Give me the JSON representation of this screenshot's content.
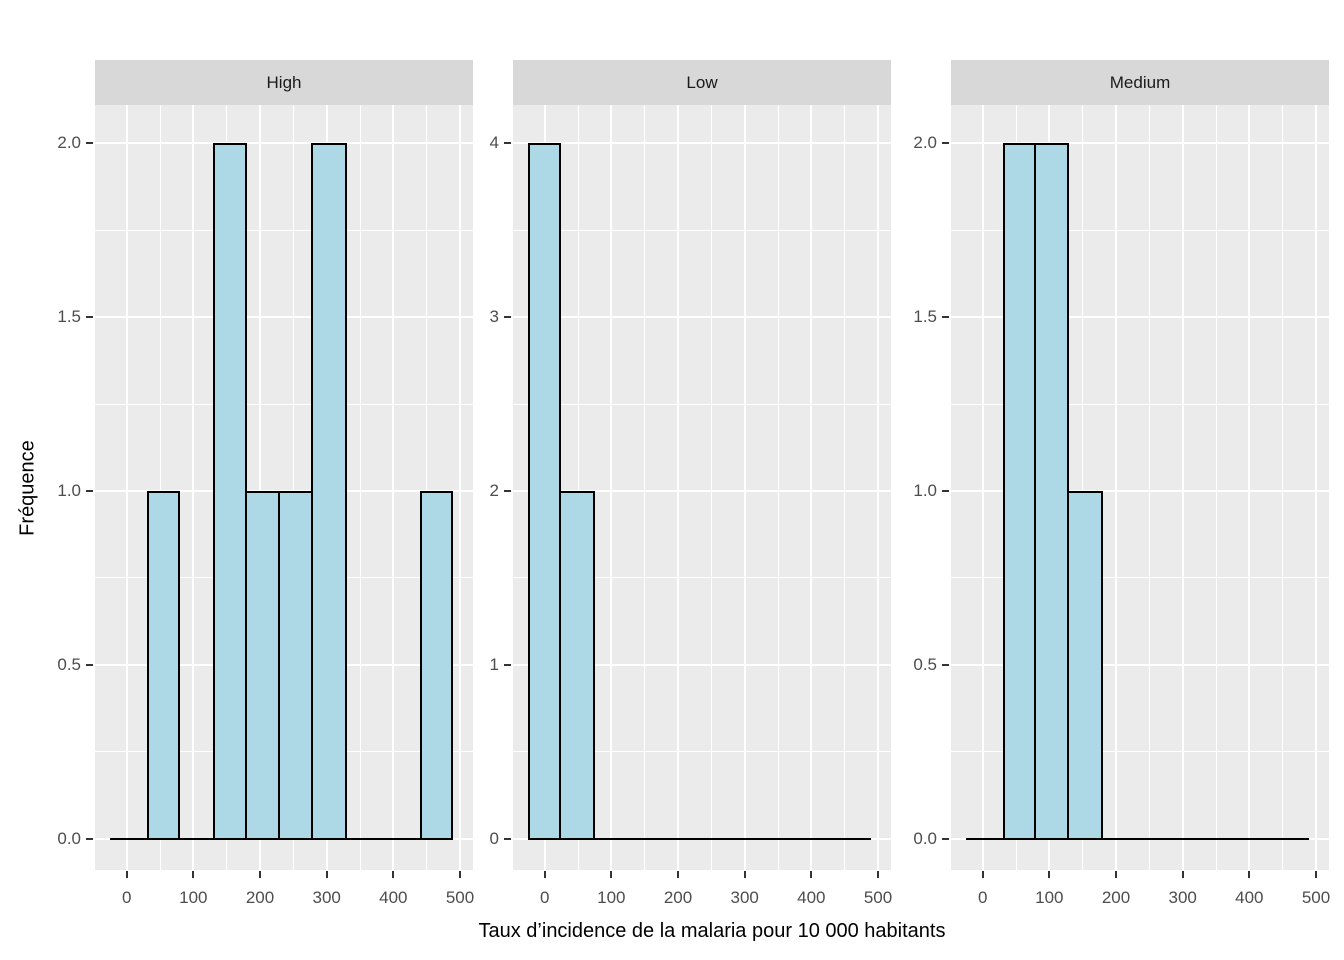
{
  "chart_data": {
    "type": "bar",
    "subtype": "faceted-histogram",
    "title": "",
    "xlabel": "Taux d’incidence de la malaria pour 10 000 habitants",
    "ylabel": "Fréquence",
    "legend": "none",
    "grid": "on",
    "x_domain": [
      -47.5,
      519.5
    ],
    "x_major_ticks": [
      {
        "value": 0,
        "label": "0"
      },
      {
        "value": 100,
        "label": "100"
      },
      {
        "value": 200,
        "label": "200"
      },
      {
        "value": 300,
        "label": "300"
      },
      {
        "value": 400,
        "label": "400"
      },
      {
        "value": 500,
        "label": "500"
      }
    ],
    "x_minor_ticks": [
      50,
      150,
      250,
      350,
      450
    ],
    "zero_line_range": [
      -25,
      490
    ],
    "facets": [
      {
        "label": "High",
        "y_domain": [
          -0.09,
          2.11
        ],
        "y_major_ticks": [
          {
            "value": 0,
            "label": "0.0"
          },
          {
            "value": 0.5,
            "label": "0.5"
          },
          {
            "value": 1,
            "label": "1.0"
          },
          {
            "value": 1.5,
            "label": "1.5"
          },
          {
            "value": 2,
            "label": "2.0"
          }
        ],
        "y_minor_ticks": [
          0.25,
          0.75,
          1.25,
          1.75
        ],
        "bins": [
          {
            "start": 30,
            "end": 80,
            "count": 1
          },
          {
            "start": 130,
            "end": 180,
            "count": 2
          },
          {
            "start": 180,
            "end": 230,
            "count": 1
          },
          {
            "start": 230,
            "end": 280,
            "count": 1
          },
          {
            "start": 280,
            "end": 330,
            "count": 2
          },
          {
            "start": 440,
            "end": 490,
            "count": 1
          }
        ]
      },
      {
        "label": "Low",
        "y_domain": [
          -0.18,
          4.22
        ],
        "y_major_ticks": [
          {
            "value": 0,
            "label": "0"
          },
          {
            "value": 1,
            "label": "1"
          },
          {
            "value": 2,
            "label": "2"
          },
          {
            "value": 3,
            "label": "3"
          },
          {
            "value": 4,
            "label": "4"
          }
        ],
        "y_minor_ticks": [
          0.5,
          1.5,
          2.5,
          3.5
        ],
        "bins": [
          {
            "start": -25,
            "end": 25,
            "count": 4
          },
          {
            "start": 25,
            "end": 75,
            "count": 2
          }
        ]
      },
      {
        "label": "Medium",
        "y_domain": [
          -0.09,
          2.11
        ],
        "y_major_ticks": [
          {
            "value": 0,
            "label": "0.0"
          },
          {
            "value": 0.5,
            "label": "0.5"
          },
          {
            "value": 1,
            "label": "1.0"
          },
          {
            "value": 1.5,
            "label": "1.5"
          },
          {
            "value": 2,
            "label": "2.0"
          }
        ],
        "y_minor_ticks": [
          0.25,
          0.75,
          1.25,
          1.75
        ],
        "bins": [
          {
            "start": 30,
            "end": 80,
            "count": 2
          },
          {
            "start": 80,
            "end": 130,
            "count": 2
          },
          {
            "start": 130,
            "end": 180,
            "count": 1
          }
        ]
      }
    ],
    "colors": {
      "bar_fill": "#add8e6",
      "bar_stroke": "#000000",
      "panel_background": "#ebebeb",
      "strip_background": "#d8d8d8",
      "gridline": "#ffffff",
      "axis_text": "#4d4d4d",
      "title_text": "#000000",
      "zero_line": "#000000"
    }
  }
}
